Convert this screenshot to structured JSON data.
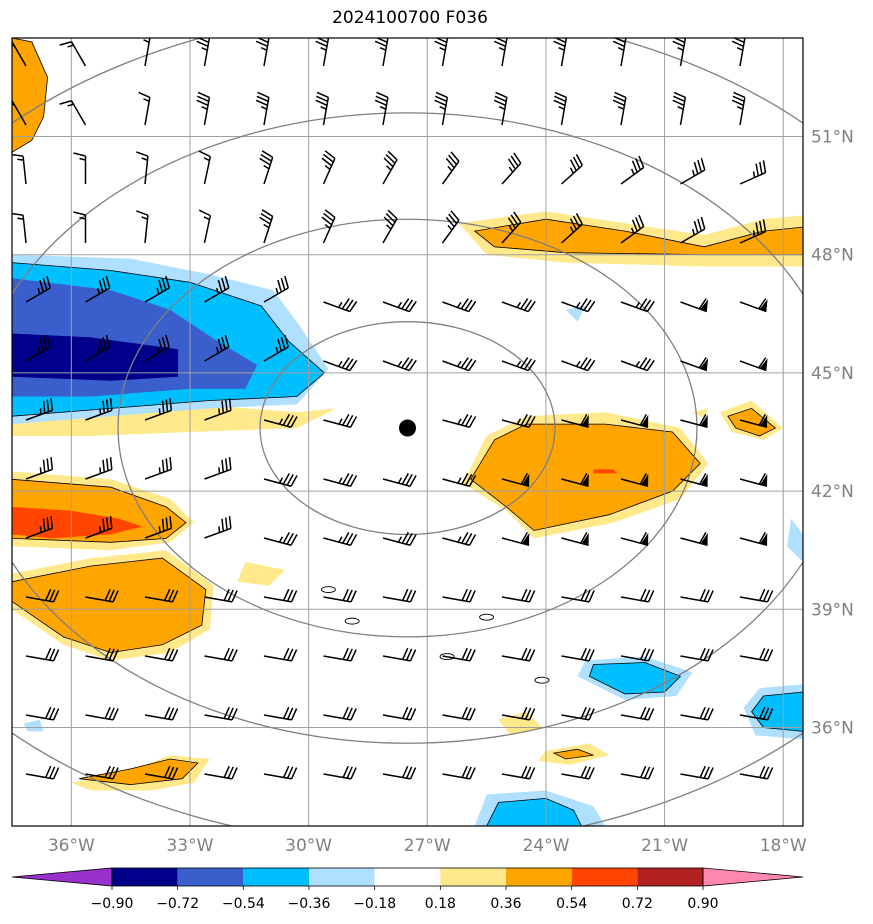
{
  "title": "2024100700 F036",
  "map": {
    "lon_range": [
      -37.5,
      -17.5
    ],
    "lat_range": [
      33.5,
      53.5
    ],
    "lon_ticks": [
      {
        "value": -36,
        "label": "36°W"
      },
      {
        "value": -33,
        "label": "33°W"
      },
      {
        "value": -30,
        "label": "30°W"
      },
      {
        "value": -27,
        "label": "27°W"
      },
      {
        "value": -24,
        "label": "24°W"
      },
      {
        "value": -21,
        "label": "21°W"
      },
      {
        "value": -18,
        "label": "18°W"
      }
    ],
    "lat_ticks": [
      {
        "value": 51,
        "label": "51°N"
      },
      {
        "value": 48,
        "label": "48°N"
      },
      {
        "value": 45,
        "label": "45°N"
      },
      {
        "value": 42,
        "label": "42°N"
      },
      {
        "value": 39,
        "label": "39°N"
      },
      {
        "value": 36,
        "label": "36°N"
      }
    ],
    "grid": true,
    "storm_center": {
      "lon": -27.5,
      "lat": 43.6
    },
    "range_rings_deg_lat": [
      2.7,
      5.3,
      8.0,
      10.6
    ]
  },
  "colorbar": {
    "levels": [
      "−0.90",
      "−0.72",
      "−0.54",
      "−0.36",
      "−0.18",
      "0.18",
      "0.36",
      "0.54",
      "0.72",
      "0.90"
    ],
    "colors": [
      "#9932cc",
      "#00008b",
      "#3a5fcd",
      "#00bfff",
      "#b0e0ff",
      "#ffffff",
      "#ffe98a",
      "#ffa500",
      "#ff4500",
      "#b22222",
      "#ff88b0"
    ]
  },
  "shaded_regions": [
    {
      "color": "#ffa500",
      "points": [
        [
          -37.5,
          53.5
        ],
        [
          -37,
          53.4
        ],
        [
          -36.6,
          52.5
        ],
        [
          -36.7,
          51.5
        ],
        [
          -37,
          50.9
        ],
        [
          -37.5,
          50.6
        ]
      ]
    },
    {
      "color": "#ffe98a",
      "points": [
        [
          -37.5,
          44.6
        ],
        [
          -35,
          44.7
        ],
        [
          -33.8,
          44.4
        ],
        [
          -32.8,
          44.2
        ],
        [
          -30.3,
          44.0
        ],
        [
          -29.3,
          44.1
        ],
        [
          -30.3,
          43.6
        ],
        [
          -33,
          43.5
        ],
        [
          -35.5,
          43.4
        ],
        [
          -37.5,
          43.4
        ]
      ]
    },
    {
      "color": "#b0e0ff",
      "points": [
        [
          -37.5,
          48.0
        ],
        [
          -34.5,
          47.9
        ],
        [
          -32.5,
          47.5
        ],
        [
          -30.9,
          47.1
        ],
        [
          -30.3,
          46.3
        ],
        [
          -29.5,
          45.1
        ],
        [
          -30.3,
          44.2
        ],
        [
          -32.5,
          44.1
        ],
        [
          -35,
          43.9
        ],
        [
          -37.5,
          43.7
        ]
      ]
    },
    {
      "color": "#00bfff",
      "points": [
        [
          -37.5,
          47.8
        ],
        [
          -35,
          47.6
        ],
        [
          -33,
          47.3
        ],
        [
          -31.2,
          46.7
        ],
        [
          -30.5,
          45.8
        ],
        [
          -29.6,
          45.0
        ],
        [
          -30.3,
          44.4
        ],
        [
          -32.5,
          44.3
        ],
        [
          -35,
          44.1
        ],
        [
          -37.5,
          43.9
        ]
      ]
    },
    {
      "color": "#3a5fcd",
      "points": [
        [
          -37.5,
          47.4
        ],
        [
          -35,
          47.1
        ],
        [
          -33.5,
          46.6
        ],
        [
          -32.3,
          45.8
        ],
        [
          -31.3,
          45.2
        ],
        [
          -31.6,
          44.6
        ],
        [
          -33,
          44.6
        ],
        [
          -35.5,
          44.4
        ],
        [
          -37.5,
          44.4
        ]
      ]
    },
    {
      "color": "#00008b",
      "points": [
        [
          -37.5,
          46.0
        ],
        [
          -35.5,
          45.9
        ],
        [
          -33.3,
          45.6
        ],
        [
          -33.3,
          44.9
        ],
        [
          -35,
          44.8
        ],
        [
          -37.5,
          44.9
        ]
      ]
    },
    {
      "color": "#ffe98a",
      "points": [
        [
          -37.5,
          42.5
        ],
        [
          -35,
          42.3
        ],
        [
          -33.5,
          41.8
        ],
        [
          -32.9,
          41.2
        ],
        [
          -33.5,
          40.7
        ],
        [
          -35,
          40.5
        ],
        [
          -37.5,
          40.6
        ]
      ]
    },
    {
      "color": "#ffa500",
      "points": [
        [
          -37.5,
          42.3
        ],
        [
          -35,
          42.1
        ],
        [
          -33.6,
          41.6
        ],
        [
          -33.1,
          41.2
        ],
        [
          -33.6,
          40.8
        ],
        [
          -35,
          40.7
        ],
        [
          -37.5,
          40.8
        ]
      ]
    },
    {
      "color": "#ff4500",
      "points": [
        [
          -37.5,
          41.6
        ],
        [
          -36,
          41.5
        ],
        [
          -34.8,
          41.3
        ],
        [
          -34.2,
          41.1
        ],
        [
          -35,
          40.9
        ],
        [
          -36.5,
          40.8
        ],
        [
          -37.5,
          40.9
        ]
      ]
    },
    {
      "color": "#ffe98a",
      "points": [
        [
          -37.5,
          39.9
        ],
        [
          -35.5,
          40.3
        ],
        [
          -33.6,
          40.5
        ],
        [
          -32.4,
          39.6
        ],
        [
          -32.5,
          38.5
        ],
        [
          -33.5,
          37.9
        ],
        [
          -35,
          37.7
        ],
        [
          -36.2,
          38.1
        ],
        [
          -37.5,
          39.0
        ]
      ]
    },
    {
      "color": "#ffa500",
      "points": [
        [
          -37.5,
          39.7
        ],
        [
          -35.5,
          40.1
        ],
        [
          -33.7,
          40.3
        ],
        [
          -32.6,
          39.5
        ],
        [
          -32.7,
          38.6
        ],
        [
          -33.7,
          38.1
        ],
        [
          -35,
          37.9
        ],
        [
          -36.2,
          38.3
        ],
        [
          -37.5,
          39.2
        ]
      ]
    },
    {
      "color": "#ffe98a",
      "points": [
        [
          -36.0,
          34.6
        ],
        [
          -34.5,
          34.9
        ],
        [
          -33.5,
          35.3
        ],
        [
          -32.5,
          35.2
        ],
        [
          -32.9,
          34.6
        ],
        [
          -34,
          34.4
        ],
        [
          -35.5,
          34.4
        ]
      ]
    },
    {
      "color": "#ffa500",
      "points": [
        [
          -35.8,
          34.7
        ],
        [
          -34.5,
          34.95
        ],
        [
          -33.5,
          35.2
        ],
        [
          -32.8,
          35.1
        ],
        [
          -33.2,
          34.7
        ],
        [
          -34.5,
          34.55
        ]
      ]
    },
    {
      "color": "#ffe98a",
      "points": [
        [
          -31.6,
          40.2
        ],
        [
          -30.6,
          40.0
        ],
        [
          -31.0,
          39.6
        ],
        [
          -31.8,
          39.7
        ]
      ]
    },
    {
      "color": "#ffe98a",
      "points": [
        [
          -26.2,
          48.8
        ],
        [
          -24,
          49.1
        ],
        [
          -22,
          48.8
        ],
        [
          -20,
          48.5
        ],
        [
          -18.5,
          48.9
        ],
        [
          -17.5,
          49.0
        ],
        [
          -17.5,
          47.7
        ],
        [
          -20,
          47.7
        ],
        [
          -23.5,
          47.8
        ],
        [
          -25.5,
          48.0
        ]
      ]
    },
    {
      "color": "#ffa500",
      "points": [
        [
          -25.8,
          48.6
        ],
        [
          -24,
          48.9
        ],
        [
          -22,
          48.6
        ],
        [
          -20,
          48.2
        ],
        [
          -18.5,
          48.6
        ],
        [
          -17.5,
          48.7
        ],
        [
          -17.5,
          48.0
        ],
        [
          -20,
          48.0
        ],
        [
          -23.5,
          48.05
        ],
        [
          -25.3,
          48.2
        ]
      ]
    },
    {
      "color": "#ffe98a",
      "points": [
        [
          -25.5,
          43.4
        ],
        [
          -24.5,
          43.9
        ],
        [
          -22.5,
          44.0
        ],
        [
          -20.6,
          43.6
        ],
        [
          -19.9,
          42.7
        ],
        [
          -20.6,
          41.8
        ],
        [
          -22.3,
          41.2
        ],
        [
          -24.3,
          40.8
        ],
        [
          -25.0,
          41.5
        ],
        [
          -26.1,
          42.2
        ],
        [
          -25.8,
          42.8
        ]
      ]
    },
    {
      "color": "#ffa500",
      "points": [
        [
          -25.3,
          43.3
        ],
        [
          -24.5,
          43.7
        ],
        [
          -22.5,
          43.7
        ],
        [
          -20.8,
          43.5
        ],
        [
          -20.1,
          42.7
        ],
        [
          -20.8,
          42.0
        ],
        [
          -22.4,
          41.4
        ],
        [
          -24.3,
          41.0
        ],
        [
          -25.0,
          41.6
        ],
        [
          -25.9,
          42.3
        ],
        [
          -25.6,
          42.8
        ]
      ]
    },
    {
      "color": "#ff4500",
      "points": [
        [
          -22.8,
          42.55
        ],
        [
          -22.3,
          42.55
        ],
        [
          -22.2,
          42.45
        ],
        [
          -22.8,
          42.45
        ]
      ]
    },
    {
      "color": "#ffe98a",
      "points": [
        [
          -19.6,
          44.0
        ],
        [
          -18.8,
          44.3
        ],
        [
          -18.0,
          43.6
        ],
        [
          -18.5,
          43.3
        ],
        [
          -19.3,
          43.5
        ]
      ]
    },
    {
      "color": "#ffa500",
      "points": [
        [
          -19.4,
          43.9
        ],
        [
          -18.8,
          44.1
        ],
        [
          -18.2,
          43.6
        ],
        [
          -18.6,
          43.4
        ],
        [
          -19.2,
          43.6
        ]
      ]
    },
    {
      "color": "#ffe98a",
      "points": [
        [
          -20.3,
          44.0
        ],
        [
          -19.9,
          44.1
        ],
        [
          -20.0,
          43.85
        ]
      ]
    },
    {
      "color": "#b0e0ff",
      "points": [
        [
          -23.5,
          46.6
        ],
        [
          -23.0,
          46.7
        ],
        [
          -23.2,
          46.3
        ]
      ]
    },
    {
      "color": "#b0e0ff",
      "points": [
        [
          -23.0,
          37.7
        ],
        [
          -21.5,
          37.8
        ],
        [
          -20.3,
          37.4
        ],
        [
          -20.7,
          36.8
        ],
        [
          -22,
          36.7
        ],
        [
          -23.2,
          37.3
        ]
      ]
    },
    {
      "color": "#00bfff",
      "points": [
        [
          -22.8,
          37.6
        ],
        [
          -21.5,
          37.65
        ],
        [
          -20.6,
          37.3
        ],
        [
          -21,
          36.9
        ],
        [
          -22,
          36.85
        ],
        [
          -22.9,
          37.3
        ]
      ]
    },
    {
      "color": "#b0e0ff",
      "points": [
        [
          -17.5,
          37.1
        ],
        [
          -18.6,
          37.0
        ],
        [
          -19,
          36.5
        ],
        [
          -18.7,
          35.8
        ],
        [
          -17.5,
          35.7
        ]
      ]
    },
    {
      "color": "#00bfff",
      "points": [
        [
          -17.5,
          36.9
        ],
        [
          -18.5,
          36.8
        ],
        [
          -18.8,
          36.4
        ],
        [
          -18.5,
          36.0
        ],
        [
          -17.5,
          35.9
        ]
      ]
    },
    {
      "color": "#b0e0ff",
      "points": [
        [
          -17.5,
          40.9
        ],
        [
          -17.8,
          41.3
        ],
        [
          -17.9,
          40.6
        ],
        [
          -17.5,
          40.2
        ]
      ]
    },
    {
      "color": "#b0e0ff",
      "points": [
        [
          -25.8,
          33.5
        ],
        [
          -25.5,
          34.3
        ],
        [
          -24,
          34.4
        ],
        [
          -22.8,
          34.0
        ],
        [
          -22.5,
          33.5
        ]
      ]
    },
    {
      "color": "#00bfff",
      "points": [
        [
          -25.5,
          33.5
        ],
        [
          -25.2,
          34.1
        ],
        [
          -24,
          34.2
        ],
        [
          -23.3,
          33.9
        ],
        [
          -23.1,
          33.5
        ]
      ]
    },
    {
      "color": "#ffe98a",
      "points": [
        [
          -25.2,
          36.2
        ],
        [
          -24.5,
          36.4
        ],
        [
          -24.1,
          36.0
        ],
        [
          -24.9,
          35.8
        ]
      ]
    },
    {
      "color": "#ffe98a",
      "points": [
        [
          -24.0,
          35.4
        ],
        [
          -22.9,
          35.6
        ],
        [
          -22.4,
          35.3
        ],
        [
          -23.4,
          35.05
        ],
        [
          -24.2,
          35.15
        ]
      ]
    },
    {
      "color": "#ffa500",
      "points": [
        [
          -23.8,
          35.35
        ],
        [
          -23.2,
          35.45
        ],
        [
          -22.8,
          35.3
        ],
        [
          -23.5,
          35.2
        ]
      ]
    },
    {
      "color": "#b0e0ff",
      "points": [
        [
          -37.2,
          36.1
        ],
        [
          -36.8,
          36.2
        ],
        [
          -36.7,
          35.9
        ],
        [
          -37.1,
          35.9
        ]
      ]
    }
  ]
}
